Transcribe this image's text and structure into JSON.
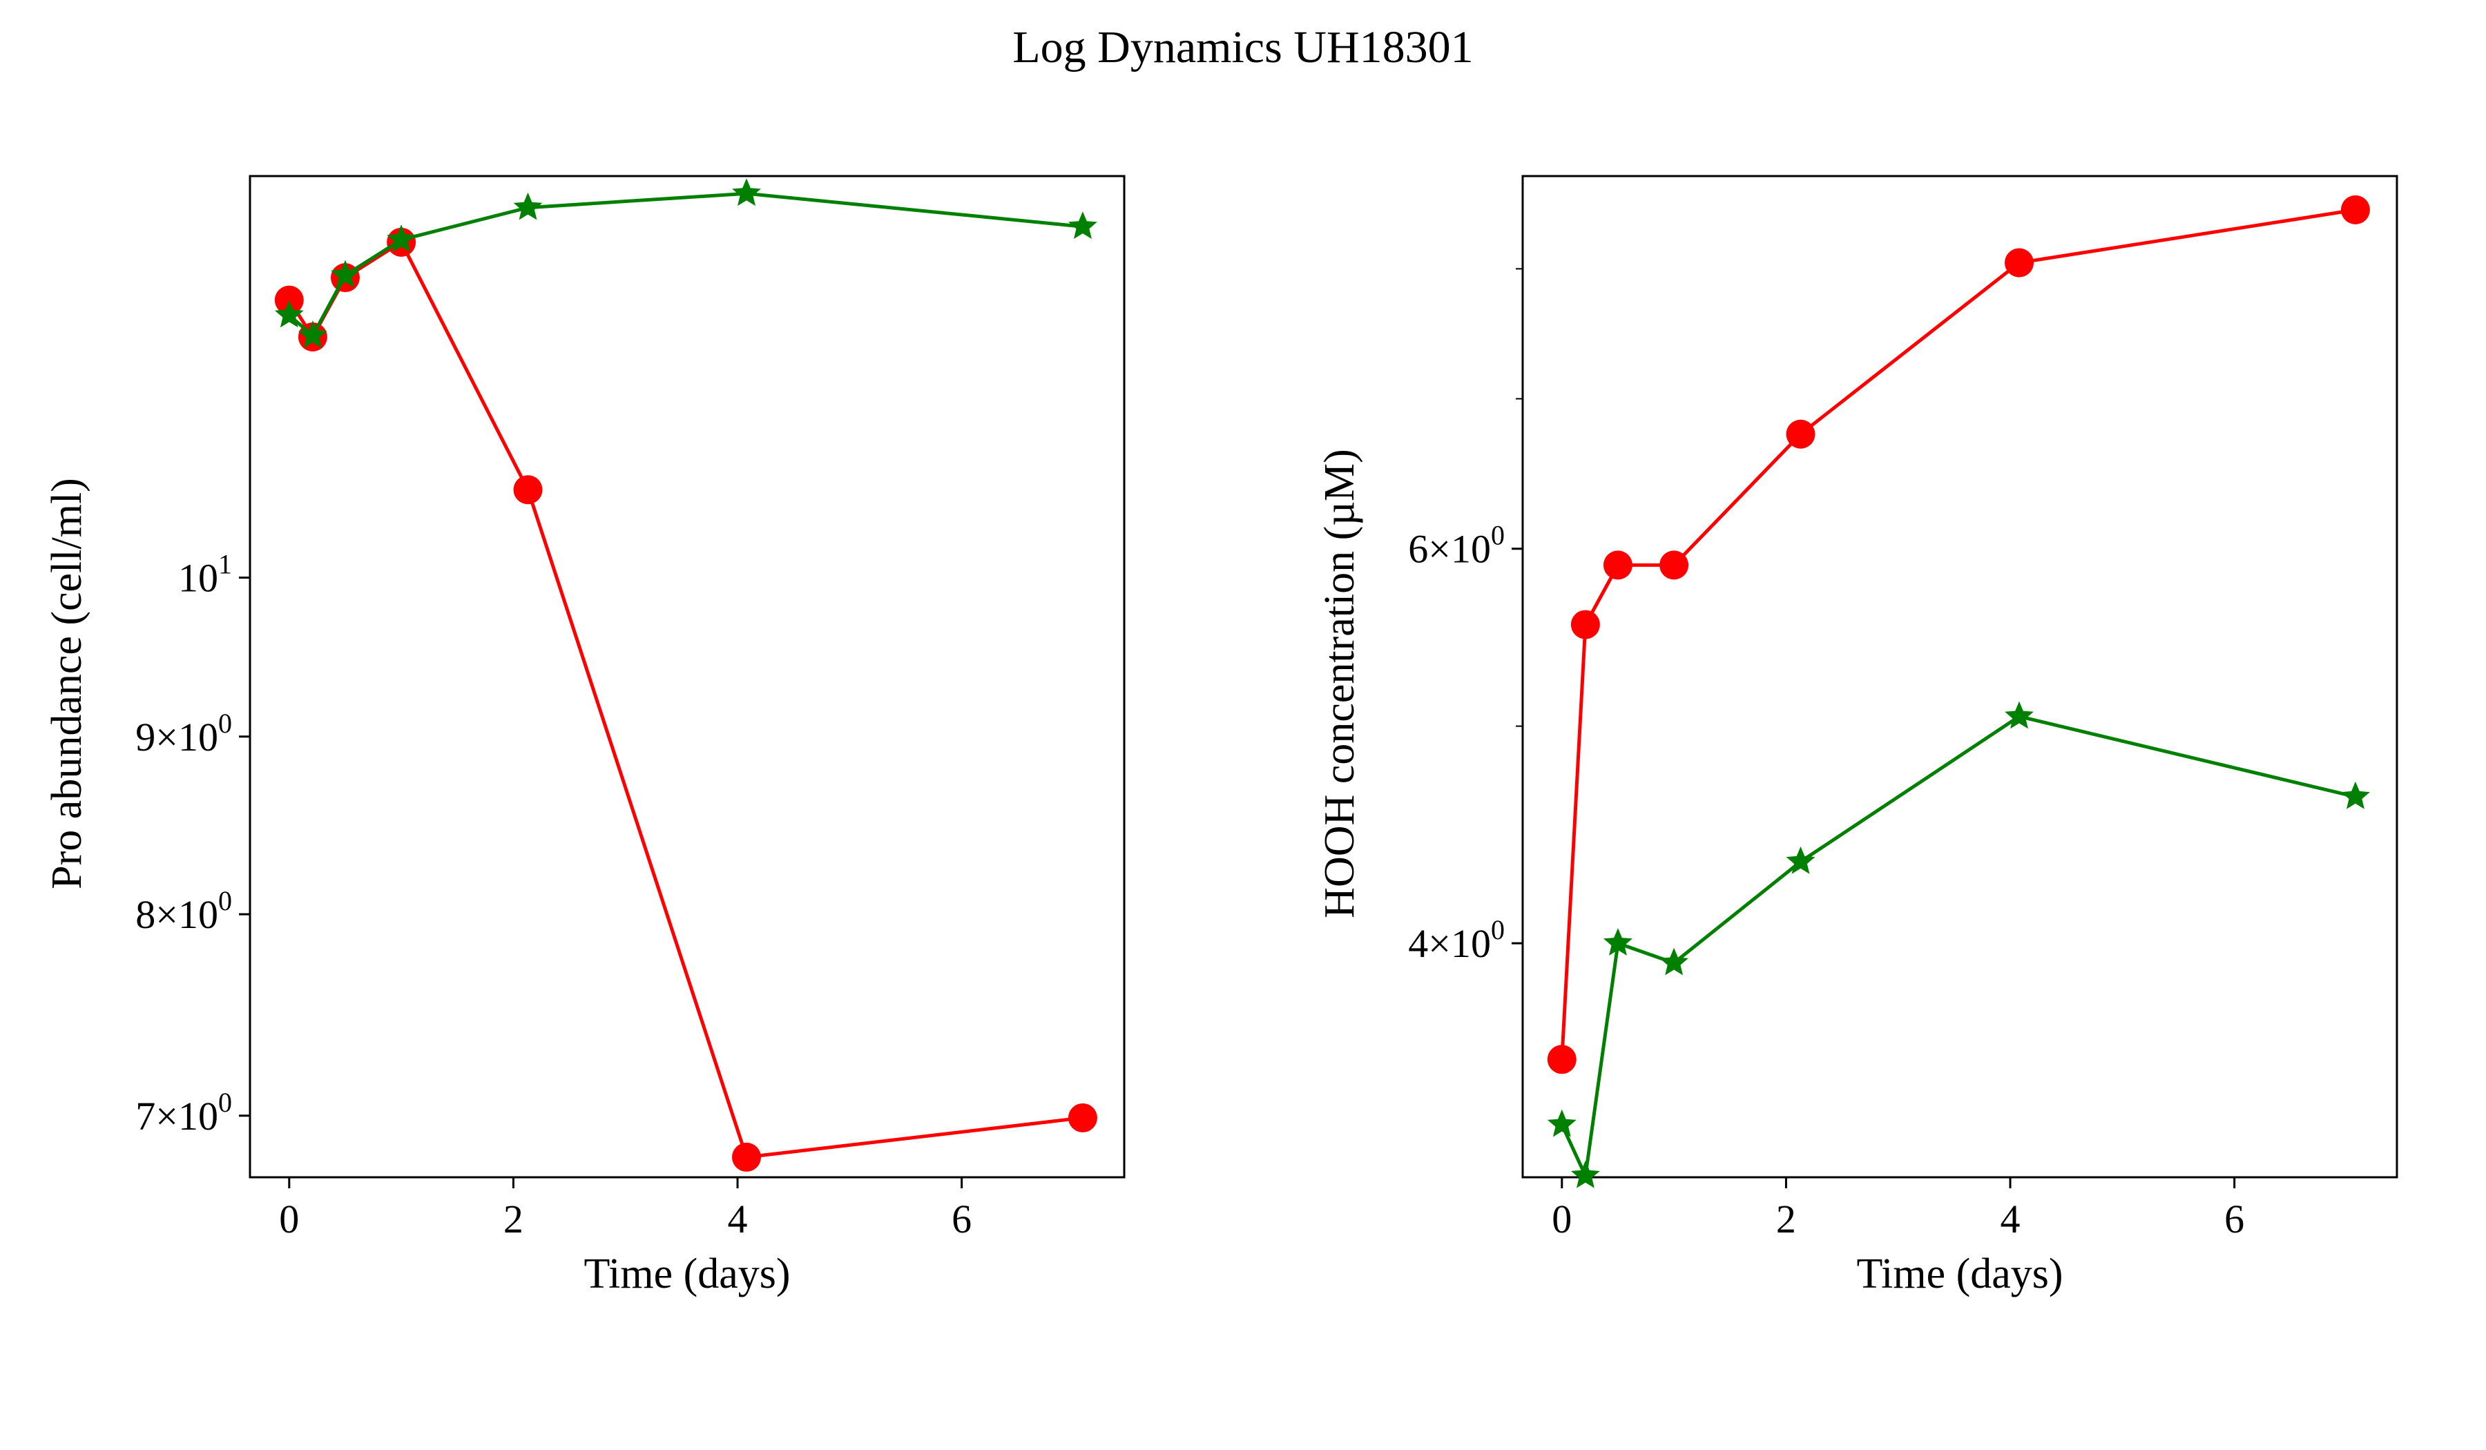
{
  "figure": {
    "title": "Log Dynamics UH18301"
  },
  "colors": {
    "series_a": "#ff0000",
    "series_b": "#008000",
    "axes": "#000000"
  },
  "chart_data": [
    {
      "type": "line",
      "xlabel": "Time (days)",
      "ylabel": "Pro abundance (cell/ml)",
      "yscale": "log",
      "xlim": [
        -0.35,
        7.45
      ],
      "ylim": [
        6.72,
        13.05
      ],
      "xticks": [
        0,
        2,
        4,
        6
      ],
      "xtick_labels": [
        "0",
        "2",
        "4",
        "6"
      ],
      "yticks": [
        {
          "value": 7,
          "base": "7",
          "exp": "0"
        },
        {
          "value": 8,
          "base": "8",
          "exp": "0"
        },
        {
          "value": 9,
          "base": "9",
          "exp": "0"
        },
        {
          "value": 10,
          "base": "10",
          "exp": "1"
        }
      ],
      "grid": false,
      "series": [
        {
          "color": "#ff0000",
          "marker": "circle",
          "x": [
            0,
            0.21,
            0.5,
            1.0,
            2.13,
            4.08,
            7.08
          ],
          "y": [
            12.02,
            11.73,
            12.2,
            12.49,
            10.6,
            6.81,
            6.99
          ]
        },
        {
          "color": "#008000",
          "marker": "star",
          "x": [
            0,
            0.21,
            0.5,
            1.0,
            2.13,
            4.08,
            7.08
          ],
          "y": [
            11.9,
            11.74,
            12.22,
            12.51,
            12.78,
            12.9,
            12.62
          ]
        }
      ]
    },
    {
      "type": "line",
      "xlabel": "Time (days)",
      "ylabel": "HOOH concentration (µM)",
      "yscale": "log",
      "xlim": [
        -0.35,
        7.45
      ],
      "ylim": [
        3.145,
        8.8
      ],
      "xticks": [
        0,
        2,
        4,
        6
      ],
      "xtick_labels": [
        "0",
        "2",
        "4",
        "6"
      ],
      "yticks": [
        {
          "value": 4,
          "base": "4",
          "exp": "0"
        },
        {
          "value": 6,
          "base": "6",
          "exp": "0"
        }
      ],
      "grid": false,
      "series": [
        {
          "color": "#ff0000",
          "marker": "circle",
          "x": [
            0,
            0.21,
            0.5,
            1.0,
            2.13,
            4.08,
            7.08
          ],
          "y": [
            3.55,
            5.55,
            5.9,
            5.9,
            6.75,
            8.05,
            8.5
          ]
        },
        {
          "color": "#008000",
          "marker": "star",
          "x": [
            0,
            0.21,
            0.5,
            1.0,
            2.13,
            4.08,
            7.08
          ],
          "y": [
            3.32,
            3.15,
            4.0,
            3.92,
            4.35,
            5.05,
            4.65
          ]
        }
      ]
    }
  ]
}
